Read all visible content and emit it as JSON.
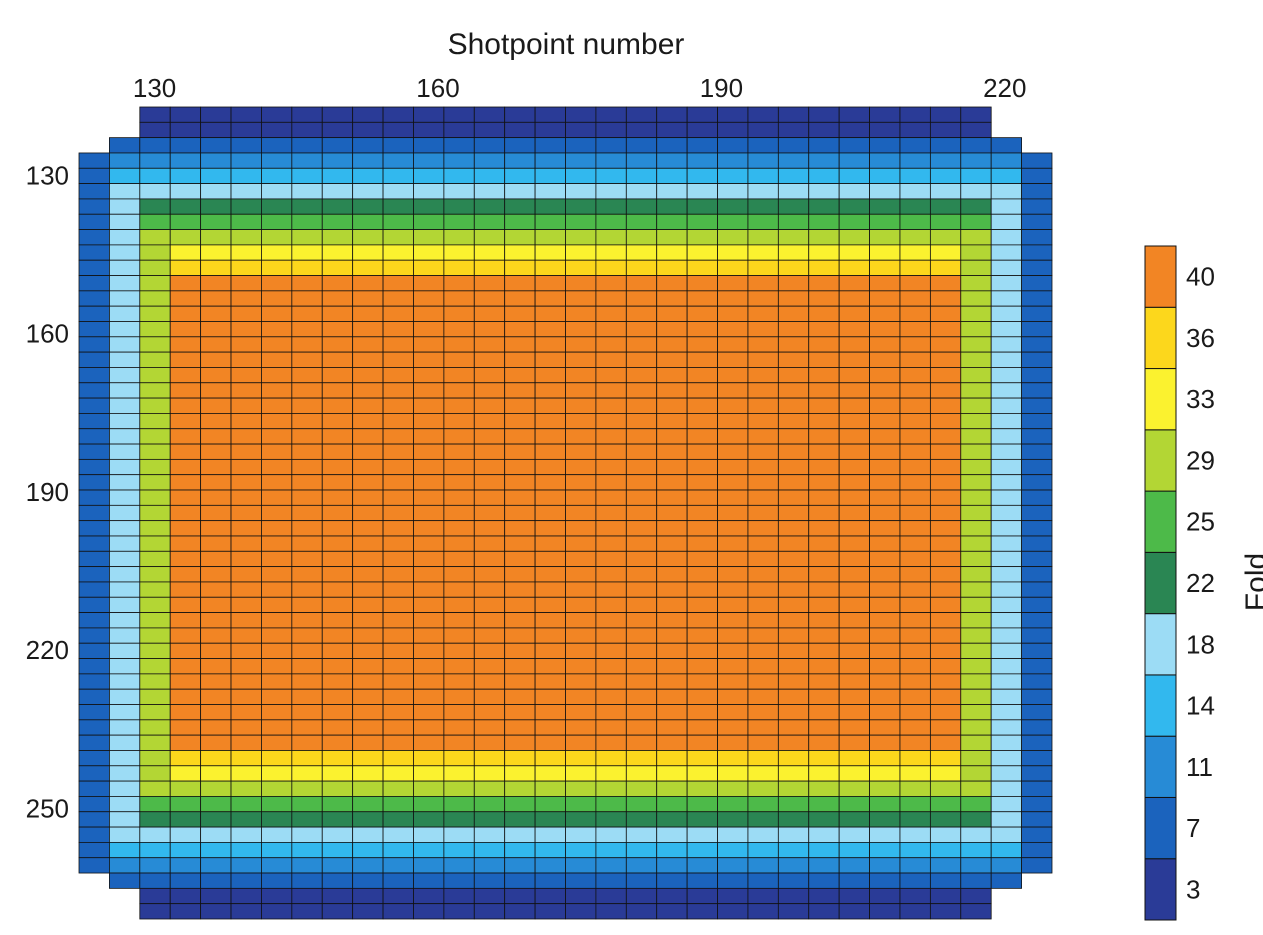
{
  "chart_data": {
    "type": "heatmap",
    "title": "",
    "xlabel": "Shotpoint number",
    "ylabel": "",
    "colorbar_label": "Fold",
    "x_ticks": [
      130,
      160,
      190,
      220
    ],
    "y_ticks": [
      130,
      160,
      190,
      220,
      250
    ],
    "x_tick_labels": [
      "130",
      "160",
      "190",
      "220"
    ],
    "y_tick_labels": [
      "130",
      "160",
      "190",
      "220",
      "250"
    ],
    "xlim": [
      122,
      225
    ],
    "ylim": [
      117,
      271
    ],
    "fold_levels": [
      3,
      7,
      11,
      14,
      18,
      22,
      25,
      29,
      33,
      36,
      40
    ],
    "level_labels": [
      "3",
      "7",
      "11",
      "14",
      "18",
      "22",
      "25",
      "29",
      "33",
      "36",
      "40"
    ],
    "level_colors": [
      "#2a3b97",
      "#1b63bd",
      "#278bd6",
      "#32b8ee",
      "#9cdcf5",
      "#2a8653",
      "#4dba49",
      "#b3d634",
      "#fbf22f",
      "#fcd71c",
      "#f28524"
    ],
    "cell_size_shotpoints": [
      3.33,
      3.33
    ],
    "fold_by_ring": [
      3,
      7,
      11,
      14,
      18,
      22,
      25,
      29,
      33,
      36,
      40
    ],
    "notes_on_pattern": ""
  }
}
